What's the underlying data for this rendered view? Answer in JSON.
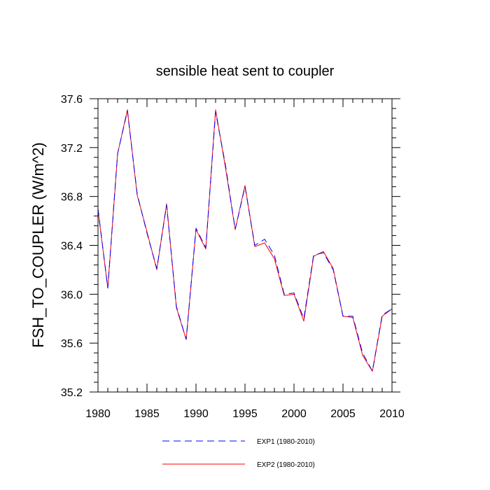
{
  "chart_data": {
    "type": "line",
    "title": "sensible heat sent to coupler",
    "xlabel": "",
    "ylabel": "FSH_TO_COUPLER  (W/m^2)",
    "xlim": [
      1980,
      2010
    ],
    "ylim": [
      35.2,
      37.6
    ],
    "xticks": [
      1980,
      1985,
      1990,
      1995,
      2000,
      2005,
      2010
    ],
    "yticks": [
      "35.2",
      "35.6",
      "36.0",
      "36.4",
      "36.8",
      "37.2",
      "37.6"
    ],
    "x": [
      1980,
      1981,
      1982,
      1983,
      1984,
      1985,
      1986,
      1987,
      1988,
      1989,
      1990,
      1991,
      1992,
      1993,
      1994,
      1995,
      1996,
      1997,
      1998,
      1999,
      2000,
      2001,
      2002,
      2003,
      2004,
      2005,
      2006,
      2007,
      2008,
      2009,
      2010
    ],
    "series": [
      {
        "name": "EXP1 (1980-2010)",
        "color": "#0000ff",
        "dash": "dashed",
        "values": [
          36.7,
          36.05,
          37.15,
          37.5,
          36.82,
          36.5,
          36.21,
          36.73,
          35.9,
          35.63,
          36.54,
          36.38,
          37.49,
          37.06,
          36.53,
          36.88,
          36.4,
          36.45,
          36.32,
          36.0,
          36.01,
          35.8,
          36.32,
          36.34,
          36.2,
          35.82,
          35.82,
          35.52,
          35.37,
          35.83,
          35.88
        ]
      },
      {
        "name": "EXP2 (1980-2010)",
        "color": "#ff0000",
        "dash": "solid",
        "values": [
          36.69,
          36.05,
          37.15,
          37.51,
          36.81,
          36.51,
          36.2,
          36.74,
          35.89,
          35.63,
          36.53,
          36.37,
          37.51,
          37.04,
          36.53,
          36.89,
          36.39,
          36.42,
          36.29,
          35.99,
          36.0,
          35.78,
          36.31,
          36.35,
          36.21,
          35.82,
          35.81,
          35.5,
          35.37,
          35.82,
          35.88
        ]
      }
    ],
    "grid": false,
    "legend_position": "bottom"
  }
}
